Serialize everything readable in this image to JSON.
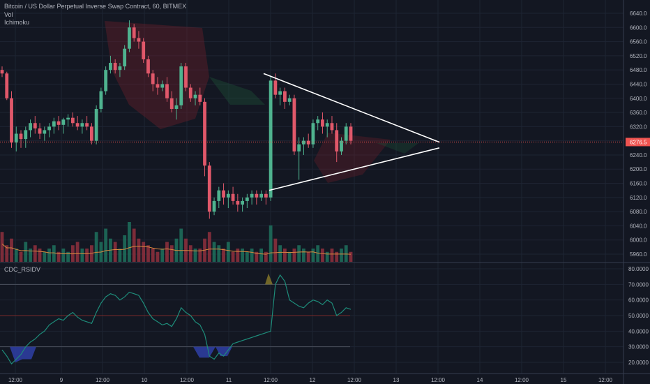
{
  "legend": {
    "symbol": "Bitcoin / US Dollar Perpetual Inverse Swap Contract, 60, BITMEX",
    "vol": "Vol",
    "ichimoku": "Ichimoku",
    "rsi_name": "CDC_RSIDV"
  },
  "colors": {
    "background": "#131722",
    "grid": "#1e2433",
    "up": "#26a69a",
    "down": "#ef5350",
    "up_candle": "#4fb38f",
    "down_candle": "#e0586a",
    "triangle": "#ffffff",
    "current_price_line": "#ef5350",
    "rsi_line": "#1e8c7a",
    "rsi_band": "#4a4f5c",
    "rsi_midline": "#7a2a2a",
    "volume_ma": "#d98a3f",
    "rsi_oversold_fill": "#2f3fa6"
  },
  "price_axis": {
    "labels": [
      "6640.0",
      "6600.0",
      "6560.0",
      "6520.0",
      "6480.0",
      "6440.0",
      "6400.0",
      "6360.0",
      "6320.0",
      "6280.0",
      "6240.0",
      "6200.0",
      "6160.0",
      "6120.0",
      "6080.0",
      "6040.0",
      "6000.0",
      "5960.0"
    ],
    "current_price": "6276.5"
  },
  "rsi_axis": {
    "labels": [
      "80.0000",
      "70.0000",
      "60.0000",
      "50.0000",
      "40.0000",
      "30.0000",
      "20.0000"
    ]
  },
  "time_axis": {
    "labels": [
      "12:00",
      "9",
      "12:00",
      "10",
      "12:00",
      "11",
      "12:00",
      "12",
      "12:00",
      "13",
      "12:00",
      "14",
      "12:00",
      "15",
      "12:00"
    ]
  },
  "chart_data": {
    "type": "candlestick",
    "title": "Bitcoin / US Dollar Perpetual Inverse Swap Contract, 60, BITMEX",
    "price_range": [
      5940,
      6660
    ],
    "candles": [
      [
        6480,
        6490,
        6460,
        6470
      ],
      [
        6470,
        6475,
        6395,
        6400
      ],
      [
        6400,
        6420,
        6260,
        6275
      ],
      [
        6275,
        6320,
        6250,
        6300
      ],
      [
        6300,
        6310,
        6260,
        6285
      ],
      [
        6285,
        6320,
        6260,
        6310
      ],
      [
        6310,
        6340,
        6290,
        6330
      ],
      [
        6330,
        6350,
        6300,
        6315
      ],
      [
        6315,
        6330,
        6285,
        6300
      ],
      [
        6300,
        6320,
        6280,
        6310
      ],
      [
        6310,
        6330,
        6290,
        6320
      ],
      [
        6320,
        6345,
        6300,
        6335
      ],
      [
        6335,
        6350,
        6310,
        6325
      ],
      [
        6325,
        6345,
        6300,
        6340
      ],
      [
        6340,
        6355,
        6320,
        6345
      ],
      [
        6345,
        6360,
        6320,
        6330
      ],
      [
        6330,
        6350,
        6310,
        6320
      ],
      [
        6320,
        6340,
        6300,
        6330
      ],
      [
        6330,
        6350,
        6310,
        6320
      ],
      [
        6320,
        6330,
        6270,
        6280
      ],
      [
        6280,
        6380,
        6270,
        6370
      ],
      [
        6370,
        6430,
        6360,
        6420
      ],
      [
        6420,
        6490,
        6410,
        6480
      ],
      [
        6480,
        6520,
        6470,
        6500
      ],
      [
        6500,
        6510,
        6470,
        6480
      ],
      [
        6480,
        6500,
        6460,
        6490
      ],
      [
        6490,
        6550,
        6480,
        6540
      ],
      [
        6540,
        6620,
        6530,
        6600
      ],
      [
        6600,
        6610,
        6560,
        6570
      ],
      [
        6570,
        6590,
        6540,
        6560
      ],
      [
        6560,
        6570,
        6500,
        6510
      ],
      [
        6510,
        6520,
        6460,
        6470
      ],
      [
        6470,
        6480,
        6420,
        6440
      ],
      [
        6440,
        6460,
        6410,
        6430
      ],
      [
        6430,
        6450,
        6420,
        6440
      ],
      [
        6440,
        6460,
        6390,
        6400
      ],
      [
        6400,
        6420,
        6360,
        6370
      ],
      [
        6370,
        6400,
        6340,
        6380
      ],
      [
        6380,
        6500,
        6370,
        6490
      ],
      [
        6490,
        6500,
        6420,
        6430
      ],
      [
        6430,
        6440,
        6390,
        6400
      ],
      [
        6400,
        6420,
        6380,
        6410
      ],
      [
        6410,
        6430,
        6380,
        6390
      ],
      [
        6390,
        6400,
        6180,
        6210
      ],
      [
        6210,
        6220,
        6060,
        6080
      ],
      [
        6080,
        6120,
        6070,
        6110
      ],
      [
        6110,
        6150,
        6090,
        6140
      ],
      [
        6140,
        6160,
        6100,
        6120
      ],
      [
        6120,
        6140,
        6090,
        6130
      ],
      [
        6130,
        6150,
        6100,
        6110
      ],
      [
        6110,
        6130,
        6080,
        6100
      ],
      [
        6100,
        6120,
        6080,
        6110
      ],
      [
        6110,
        6130,
        6090,
        6120
      ],
      [
        6120,
        6140,
        6100,
        6130
      ],
      [
        6130,
        6140,
        6100,
        6120
      ],
      [
        6120,
        6140,
        6110,
        6130
      ],
      [
        6130,
        6140,
        6100,
        6120
      ],
      [
        6120,
        6460,
        6110,
        6450
      ],
      [
        6450,
        6470,
        6400,
        6410
      ],
      [
        6410,
        6430,
        6380,
        6420
      ],
      [
        6420,
        6430,
        6370,
        6390
      ],
      [
        6390,
        6410,
        6380,
        6400
      ],
      [
        6400,
        6410,
        6240,
        6250
      ],
      [
        6250,
        6290,
        6170,
        6270
      ],
      [
        6270,
        6290,
        6240,
        6280
      ],
      [
        6280,
        6300,
        6260,
        6270
      ],
      [
        6270,
        6340,
        6260,
        6330
      ],
      [
        6330,
        6350,
        6310,
        6340
      ],
      [
        6340,
        6360,
        6300,
        6320
      ],
      [
        6320,
        6340,
        6290,
        6330
      ],
      [
        6330,
        6350,
        6300,
        6310
      ],
      [
        6310,
        6330,
        6220,
        6250
      ],
      [
        6250,
        6290,
        6240,
        6280
      ],
      [
        6280,
        6330,
        6270,
        6320
      ],
      [
        6320,
        6330,
        6270,
        6280
      ]
    ],
    "volume": [
      0.45,
      0.25,
      0.35,
      0.2,
      0.15,
      0.3,
      0.2,
      0.25,
      0.2,
      0.15,
      0.2,
      0.25,
      0.15,
      0.2,
      0.15,
      0.25,
      0.3,
      0.2,
      0.2,
      0.25,
      0.45,
      0.3,
      0.5,
      0.35,
      0.3,
      0.2,
      0.4,
      0.6,
      0.5,
      0.35,
      0.3,
      0.25,
      0.2,
      0.15,
      0.2,
      0.3,
      0.25,
      0.35,
      0.5,
      0.35,
      0.25,
      0.2,
      0.2,
      0.35,
      0.45,
      0.3,
      0.25,
      0.2,
      0.3,
      0.15,
      0.2,
      0.2,
      0.15,
      0.2,
      0.15,
      0.2,
      0.15,
      0.55,
      0.35,
      0.25,
      0.2,
      0.15,
      0.2,
      0.25,
      0.2,
      0.15,
      0.2,
      0.25,
      0.2,
      0.15,
      0.2,
      0.15,
      0.2,
      0.25,
      0.15
    ],
    "rsi_range": [
      15,
      85
    ],
    "rsi": [
      28,
      24,
      19,
      22,
      25,
      30,
      33,
      35,
      38,
      40,
      44,
      46,
      48,
      47,
      50,
      52,
      49,
      47,
      46,
      45,
      52,
      58,
      62,
      64,
      63,
      60,
      62,
      65,
      64,
      63,
      58,
      52,
      48,
      46,
      44,
      45,
      43,
      48,
      55,
      52,
      50,
      46,
      44,
      38,
      24,
      22,
      26,
      24,
      28,
      32,
      33,
      34,
      35,
      36,
      37,
      38,
      39,
      40,
      70,
      76,
      72,
      60,
      58,
      56,
      55,
      58,
      60,
      59,
      57,
      60,
      58,
      50,
      52,
      55,
      54
    ],
    "rsi_levels": [
      70,
      50,
      30
    ],
    "triangle": {
      "upper": [
        [
          6460,
          0
        ],
        [
          6276,
          1
        ]
      ],
      "lower": [
        [
          6150,
          0
        ],
        [
          6260,
          1
        ]
      ]
    }
  }
}
